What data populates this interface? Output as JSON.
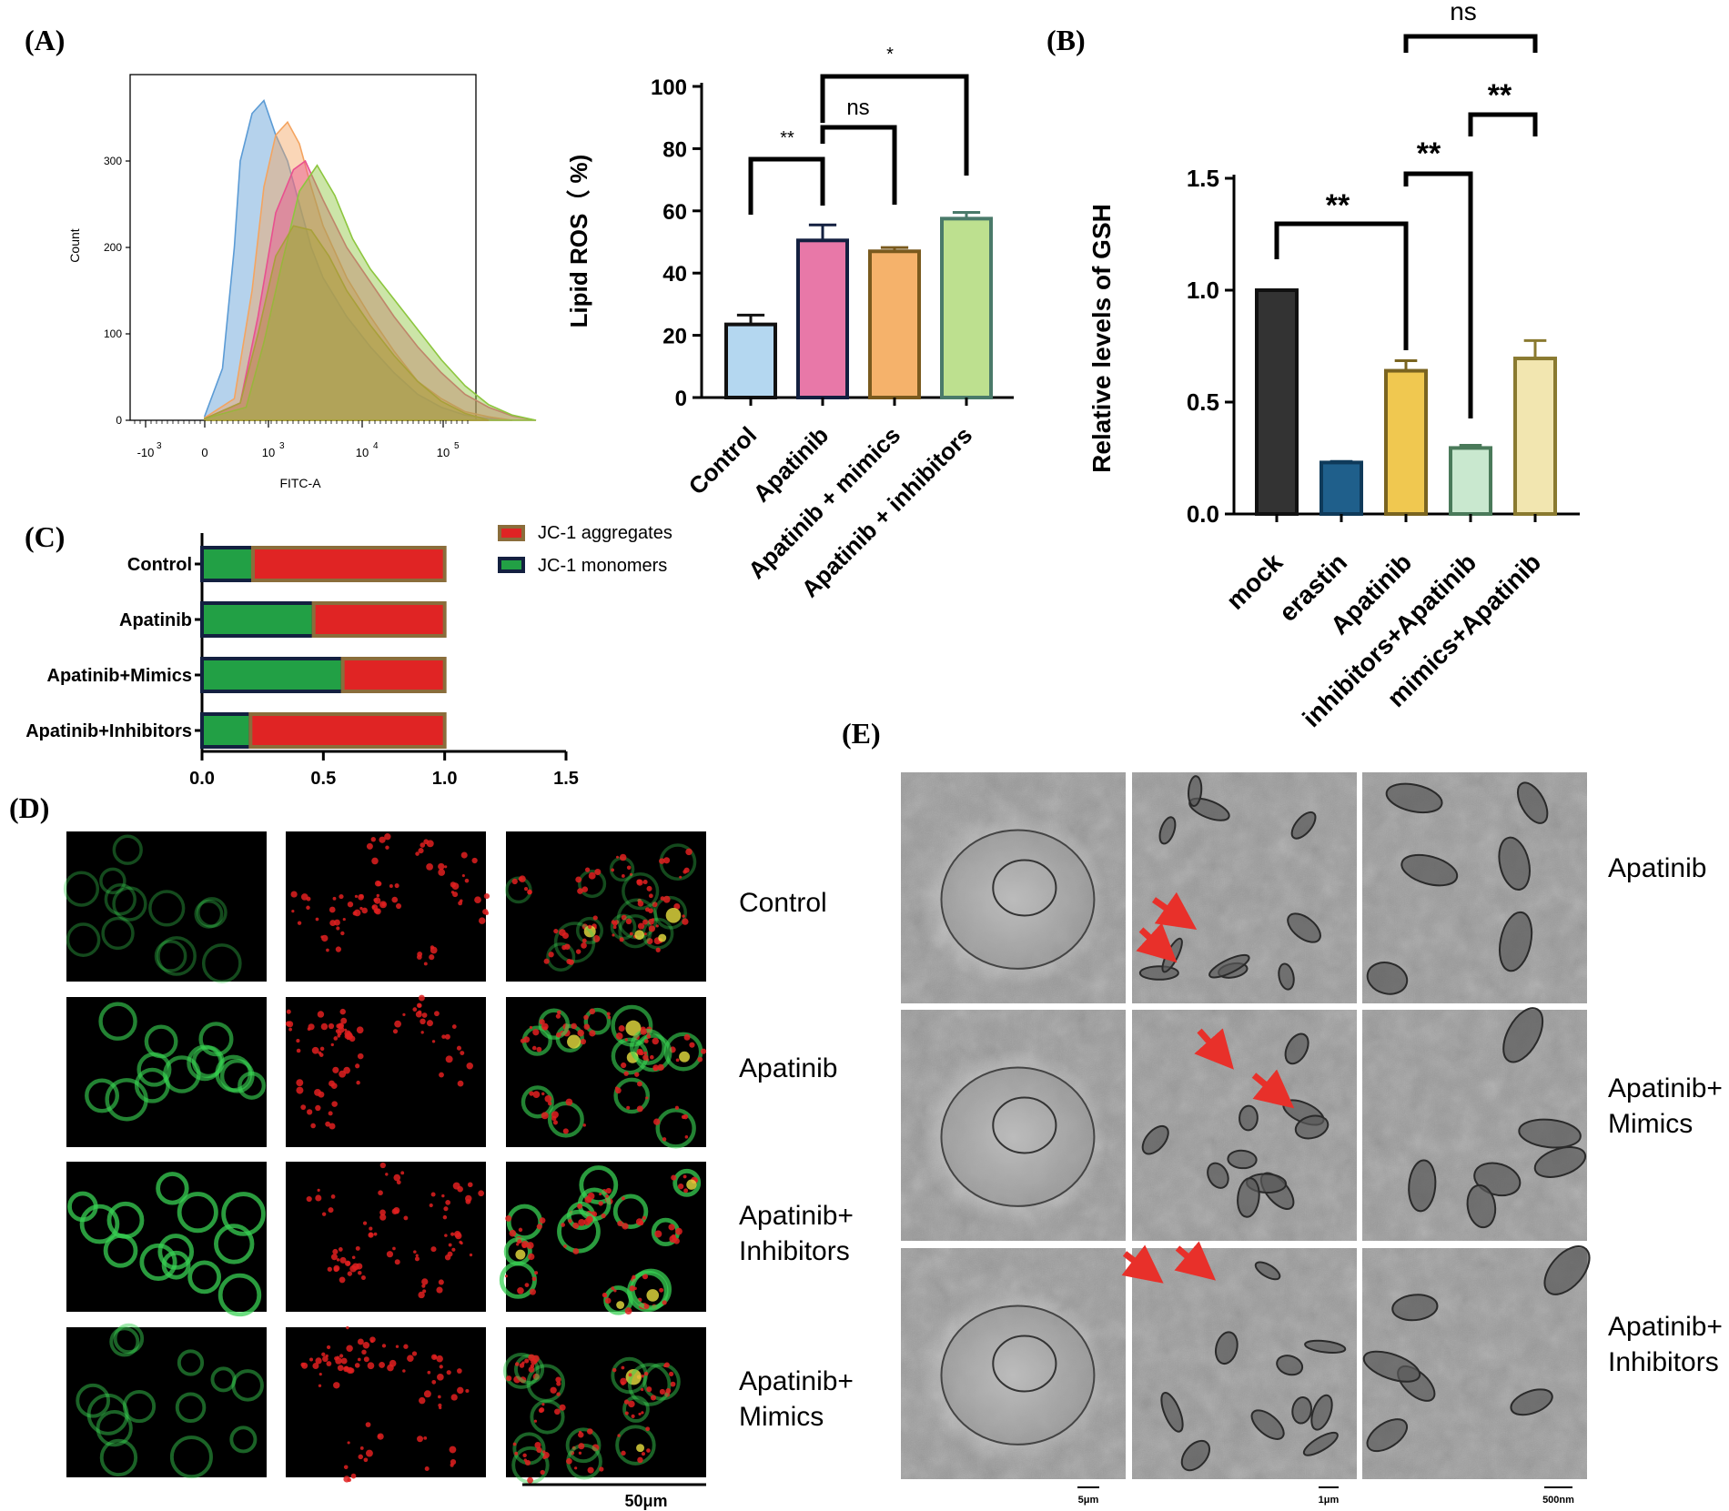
{
  "panels": {
    "A": "(A)",
    "B": "(B)",
    "C": "(C)",
    "D": "(D)",
    "E": "(E)"
  },
  "colors": {
    "blue": "#5b9bd5",
    "orange": "#f4a460",
    "pink": "#e8508f",
    "green": "#8dc63f",
    "olive": "#a8a03a",
    "gfp": "#39d353",
    "red": "#e02020",
    "arrow": "#e8302a",
    "bar_control": "#b4d7f0",
    "bar_apatinib": "#e878a8",
    "bar_mimics": "#f5b26b",
    "bar_inhibitors": "#bde08f",
    "gsh_mock": "#333333",
    "gsh_erastin": "#1f5f8b",
    "gsh_apatinib": "#f0c850",
    "gsh_inhibitors": "#c9e8cf",
    "gsh_mimics": "#f2e6b0",
    "jc1_green": "#22a045",
    "jc1_red": "#e02424",
    "jc1_border_dark": "#132040",
    "jc1_border_brown": "#8a6d3b"
  },
  "chart_data": [
    {
      "id": "flow_histogram",
      "type": "area",
      "xlabel": "FITC-A",
      "ylabel": "Count",
      "x_ticks": [
        "-10",
        "0",
        "10",
        "10",
        "10"
      ],
      "x_tick_exponents": [
        "3",
        "",
        "3",
        "4",
        "5"
      ],
      "y_ticks": [
        0,
        100,
        200,
        300
      ],
      "ylim": [
        0,
        400
      ],
      "series": [
        {
          "color": "blue",
          "x": [
            0,
            0.15,
            0.25,
            0.3,
            0.4,
            0.5,
            0.6,
            0.7,
            0.8,
            0.9,
            1.0,
            1.2,
            1.4,
            1.6,
            1.8,
            2.0,
            2.2,
            2.4,
            2.6
          ],
          "y": [
            5,
            60,
            200,
            300,
            355,
            370,
            330,
            300,
            250,
            200,
            165,
            120,
            85,
            55,
            30,
            15,
            6,
            2,
            0
          ]
        },
        {
          "color": "orange",
          "x": [
            0,
            0.25,
            0.4,
            0.5,
            0.6,
            0.7,
            0.8,
            0.9,
            1.0,
            1.2,
            1.4,
            1.6,
            1.8,
            2.0,
            2.2,
            2.4,
            2.6
          ],
          "y": [
            3,
            25,
            150,
            270,
            330,
            345,
            320,
            270,
            225,
            165,
            120,
            80,
            45,
            25,
            10,
            4,
            0
          ]
        },
        {
          "color": "pink",
          "x": [
            0,
            0.3,
            0.45,
            0.6,
            0.75,
            0.85,
            1.0,
            1.2,
            1.4,
            1.6,
            1.8,
            2.0,
            2.2,
            2.4,
            2.6,
            2.8
          ],
          "y": [
            2,
            20,
            120,
            240,
            290,
            300,
            255,
            200,
            160,
            120,
            85,
            55,
            30,
            15,
            5,
            0
          ]
        },
        {
          "color": "green",
          "x": [
            0,
            0.35,
            0.5,
            0.65,
            0.8,
            0.95,
            1.1,
            1.25,
            1.4,
            1.6,
            1.8,
            2.0,
            2.2,
            2.4,
            2.6,
            2.8
          ],
          "y": [
            2,
            15,
            90,
            180,
            265,
            295,
            260,
            210,
            175,
            140,
            105,
            70,
            40,
            18,
            6,
            0
          ]
        },
        {
          "color": "olive",
          "x": [
            0,
            0.3,
            0.45,
            0.6,
            0.75,
            0.9,
            1.05,
            1.2,
            1.4,
            1.6,
            1.8,
            2.0,
            2.2,
            2.4
          ],
          "y": [
            2,
            20,
            100,
            190,
            225,
            220,
            190,
            150,
            110,
            75,
            45,
            22,
            8,
            0
          ]
        }
      ]
    },
    {
      "id": "lipid_ros",
      "type": "bar",
      "ylabel": "Lipid ROS（ %)",
      "ylim": [
        0,
        100
      ],
      "y_ticks": [
        0,
        20,
        40,
        60,
        80,
        100
      ],
      "categories": [
        "Control",
        "Apatinib",
        "Apatinib + mimics",
        "Apatinib + inhibitors"
      ],
      "values": [
        23.5,
        50.5,
        47,
        57.5
      ],
      "errors": [
        3,
        5,
        1.2,
        2
      ],
      "bar_colors": [
        "bar_control",
        "bar_apatinib",
        "bar_mimics",
        "bar_inhibitors"
      ],
      "annotations": [
        {
          "from": 0,
          "to": 1,
          "label": "**"
        },
        {
          "from": 1,
          "to": 2,
          "label": "ns"
        },
        {
          "from": 1,
          "to": 3,
          "label": "*"
        }
      ]
    },
    {
      "id": "gsh",
      "type": "bar",
      "ylabel": "Relative levels of GSH",
      "ylim": [
        0,
        1.5
      ],
      "y_ticks": [
        "0.0",
        "0.5",
        "1.0",
        "1.5"
      ],
      "categories": [
        "mock",
        "erastin",
        "Apatinib",
        "inhibitors+Apatinib",
        "mimics+Apatinib"
      ],
      "values": [
        1.0,
        0.23,
        0.64,
        0.295,
        0.695
      ],
      "errors": [
        0,
        0.005,
        0.045,
        0.012,
        0.08
      ],
      "bar_colors": [
        "gsh_mock",
        "gsh_erastin",
        "gsh_apatinib",
        "gsh_inhibitors",
        "gsh_mimics"
      ],
      "annotations": [
        {
          "from": 0,
          "to": 2,
          "label": "**"
        },
        {
          "from": 2,
          "to": 3,
          "label": "**"
        },
        {
          "from": 3,
          "to": 4,
          "label": "**"
        },
        {
          "from": 2,
          "to": 4,
          "label": "ns"
        }
      ]
    },
    {
      "id": "jc1",
      "type": "bar",
      "orientation": "horizontal",
      "stacked": true,
      "categories": [
        "Control",
        "Apatinib",
        "Apatinib+Mimics",
        "Apatinib+Inhibitors"
      ],
      "x_ticks": [
        "0.0",
        "0.5",
        "1.0",
        "1.5"
      ],
      "xlim": [
        0,
        1.5
      ],
      "legend": [
        "JC-1 aggregates",
        "JC-1 monomers"
      ],
      "series": [
        {
          "name": "JC-1 monomers",
          "values": [
            0.21,
            0.46,
            0.58,
            0.2
          ]
        },
        {
          "name": "JC-1 aggregates",
          "values": [
            0.79,
            0.54,
            0.42,
            0.8
          ]
        }
      ]
    }
  ],
  "panel_D": {
    "row_labels": [
      [
        "Control"
      ],
      [
        "Apatinib"
      ],
      [
        "Apatinib+",
        "Inhibitors"
      ],
      [
        "Apatinib+",
        "Mimics"
      ]
    ],
    "intensity": [
      0.25,
      0.7,
      0.9,
      0.45
    ],
    "scale_bar": "50μm"
  },
  "panel_E": {
    "row_labels": [
      [
        "Apatinib"
      ],
      [
        "Apatinib+",
        "Mimics"
      ],
      [
        "Apatinib+",
        "Inhibitors"
      ]
    ],
    "scale_bars": [
      "5μm",
      "1μm",
      "500nm"
    ]
  }
}
